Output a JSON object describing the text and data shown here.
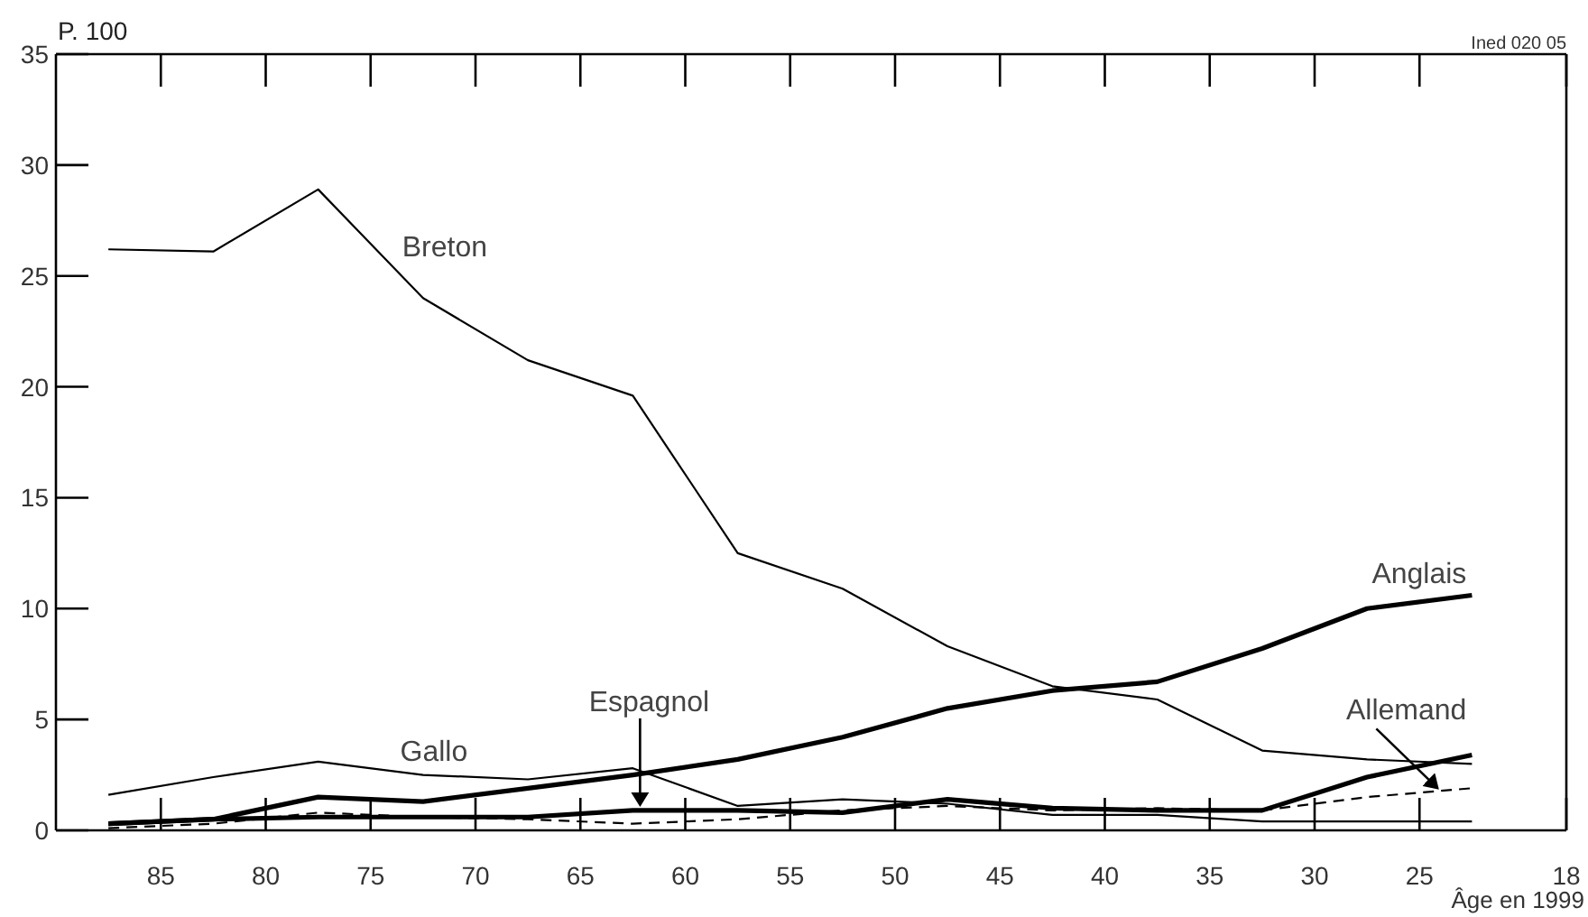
{
  "chart_data": {
    "type": "line",
    "ylabel": "P. 100",
    "xlabel": "Âge en 1999",
    "annotations": [
      "Ined 020 05"
    ],
    "x": [
      87.5,
      82.5,
      77.5,
      72.5,
      67.5,
      62.5,
      57.5,
      52.5,
      47.5,
      42.5,
      37.5,
      32.5,
      27.5,
      22.5
    ],
    "series": [
      {
        "name": "Breton",
        "color": "#000000",
        "values": [
          26.2,
          26.1,
          28.9,
          24.0,
          21.2,
          19.6,
          12.5,
          10.9,
          8.3,
          6.5,
          5.9,
          3.6,
          3.2,
          3.0
        ]
      },
      {
        "name": "Gallo",
        "color": "#000000",
        "values": [
          1.6,
          2.4,
          3.1,
          2.5,
          2.3,
          2.8,
          1.1,
          1.4,
          1.2,
          0.7,
          0.7,
          0.4,
          0.4,
          0.4
        ]
      },
      {
        "name": "Anglais",
        "color": "#000000",
        "values": [
          0.3,
          0.5,
          1.5,
          1.3,
          1.9,
          2.5,
          3.2,
          4.2,
          5.5,
          6.3,
          6.7,
          8.2,
          10.0,
          10.6
        ]
      },
      {
        "name": "Espagnol",
        "color": "#000000",
        "values": [
          0.3,
          0.5,
          0.6,
          0.6,
          0.6,
          0.9,
          0.9,
          0.8,
          1.4,
          1.0,
          0.9,
          0.9,
          2.4,
          3.4
        ]
      },
      {
        "name": "Allemand",
        "color": "#000000",
        "line_style": "dashed",
        "values": [
          0.1,
          0.3,
          0.8,
          0.6,
          0.5,
          0.3,
          0.5,
          0.9,
          1.1,
          0.9,
          1.0,
          0.9,
          1.5,
          1.9
        ]
      }
    ],
    "xlim": [
      90,
      18
    ],
    "xticks": [
      85,
      80,
      75,
      70,
      65,
      60,
      55,
      50,
      45,
      40,
      35,
      30,
      25,
      18
    ],
    "ylim": [
      0,
      35
    ],
    "yticks": [
      0,
      5,
      10,
      15,
      20,
      25,
      30,
      35
    ],
    "grid": false,
    "legend": false,
    "marker": "none",
    "line_style": "solid"
  }
}
